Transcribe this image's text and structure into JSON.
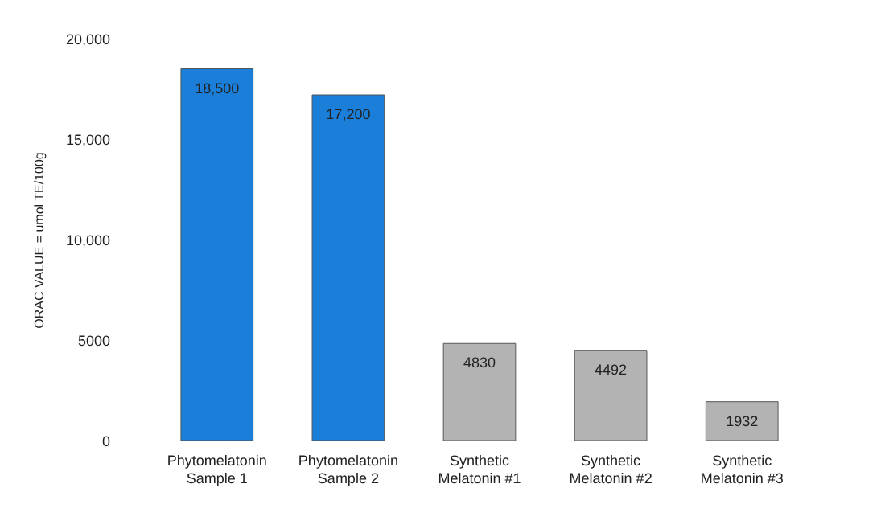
{
  "chart_data": {
    "type": "bar",
    "ylabel": "ORAC VALUE = umol TE/100g",
    "categories": [
      "Phytomelatonin\nSample 1",
      "Phytomelatonin\nSample 2",
      "Synthetic\nMelatonin #1",
      "Synthetic\nMelatonin #2",
      "Synthetic\nMelatonin #3"
    ],
    "values": [
      18500,
      17200,
      4830,
      4492,
      1932
    ],
    "value_labels": [
      "18,500",
      "17,200",
      "4830",
      "4492",
      "1932"
    ],
    "colors": [
      "#1b7fd9",
      "#1b7fd9",
      "#b3b3b3",
      "#b3b3b3",
      "#b3b3b3"
    ],
    "ylim": [
      0,
      20000
    ],
    "yticks": [
      0,
      5000,
      {
        "value": 10000,
        "label": "10,000"
      },
      {
        "value": 15000,
        "label": "15,000"
      },
      {
        "value": 20000,
        "label": "20,000"
      }
    ],
    "grid": false
  }
}
